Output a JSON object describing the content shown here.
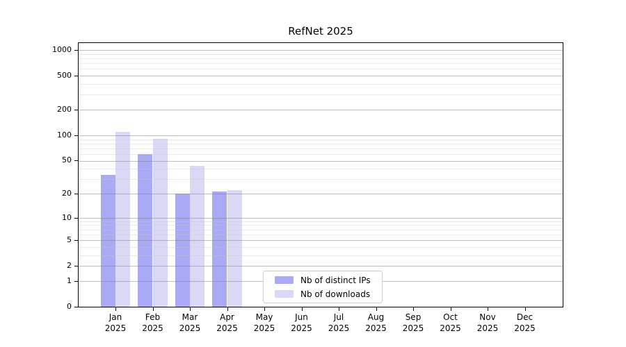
{
  "title": "RefNet 2025",
  "chart_data": {
    "type": "bar",
    "title": "RefNet 2025",
    "x_categories": [
      "Jan",
      "Feb",
      "Mar",
      "Apr",
      "May",
      "Jun",
      "Jul",
      "Aug",
      "Sep",
      "Oct",
      "Nov",
      "Dec"
    ],
    "x_year_label": "2025",
    "series": [
      {
        "name": "Nb of distinct IPs",
        "color": "#a9a9f5",
        "values": [
          34,
          60,
          20,
          21,
          0,
          0,
          0,
          0,
          0,
          0,
          0,
          0
        ]
      },
      {
        "name": "Nb of downloads",
        "color": "#d9d9f5",
        "values": [
          110,
          91,
          43,
          22,
          0,
          0,
          0,
          0,
          0,
          0,
          0,
          0
        ]
      }
    ],
    "y_scale": "log1p",
    "y_axis_major_ticks": [
      0,
      1,
      2,
      5,
      10,
      20,
      50,
      100,
      200,
      500,
      1000
    ],
    "y_axis_minor_ticks": [
      3,
      4,
      6,
      7,
      8,
      9,
      30,
      40,
      60,
      70,
      80,
      90,
      300,
      400,
      600,
      700,
      800,
      900
    ],
    "ylim": [
      0,
      1250
    ],
    "grid": "on",
    "legend_position": "lower-center",
    "spine_color": "#000000",
    "major_grid_color": "#c3c3c3",
    "minor_grid_color": "#e8e8e8"
  }
}
